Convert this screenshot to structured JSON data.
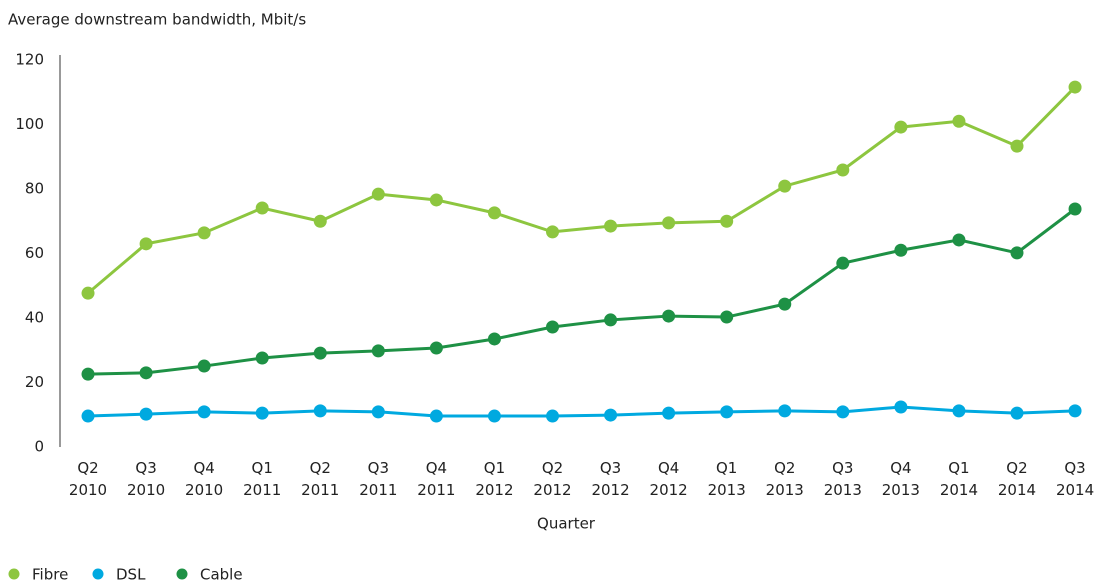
{
  "chart_data": {
    "type": "line",
    "title": "Average downstream bandwidth, Mbit/s",
    "x_label": "Quarter",
    "categories": [
      "Q2 2010",
      "Q3 2010",
      "Q4 2010",
      "Q1 2011",
      "Q2 2011",
      "Q3 2011",
      "Q4 2011",
      "Q1 2012",
      "Q2 2012",
      "Q3 2012",
      "Q4 2012",
      "Q1 2013",
      "Q2 2013",
      "Q3 2013",
      "Q4 2013",
      "Q1 2014",
      "Q2 2014",
      "Q3 2014"
    ],
    "series": [
      {
        "name": "Fibre",
        "color": "#8dc63f",
        "values": [
          47.7,
          63,
          66.4,
          74.1,
          70,
          78.4,
          76.6,
          72.6,
          66.7,
          68.5,
          69.5,
          70,
          80.9,
          85.9,
          99.2,
          101,
          93.3,
          111.6
        ]
      },
      {
        "name": "DSL",
        "color": "#00a9e0",
        "values": [
          9.6,
          10.2,
          10.9,
          10.5,
          11.2,
          10.9,
          9.6,
          9.6,
          9.6,
          9.9,
          10.5,
          10.9,
          11.2,
          10.9,
          12.4,
          11.2,
          10.5,
          11.2
        ]
      },
      {
        "name": "Cable",
        "color": "#1e9145",
        "values": [
          22.6,
          23,
          25.1,
          27.6,
          29.1,
          29.8,
          30.7,
          33.5,
          37.2,
          39.4,
          40.6,
          40.3,
          44.3,
          57,
          61,
          64.2,
          60.2,
          73.8
        ]
      }
    ],
    "ylim": [
      0,
      120
    ],
    "yticks": [
      0,
      20,
      40,
      60,
      80,
      100,
      120
    ],
    "grid": false,
    "legend": "bottom-left"
  }
}
